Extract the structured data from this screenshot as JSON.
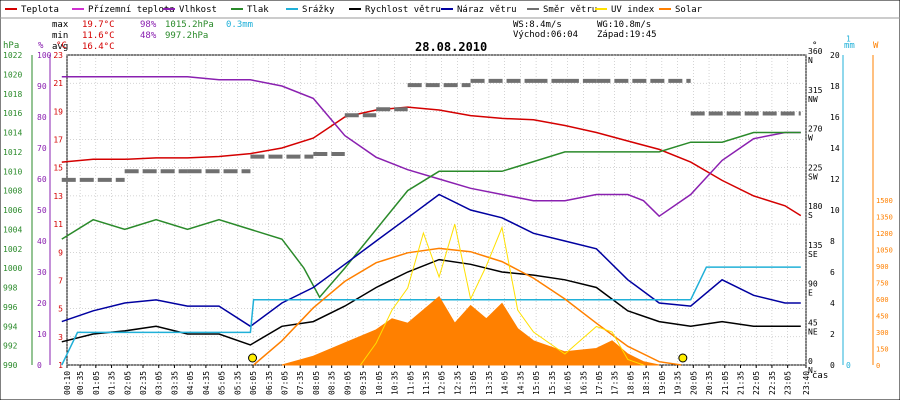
{
  "chart_data": {
    "type": "line",
    "title": "28.08.2010",
    "xlabel": "čas",
    "legend": [
      {
        "label": "Teplota",
        "color": "#d40000"
      },
      {
        "label": "Přízemní teplota",
        "color": "#d030d0"
      },
      {
        "label": "Vlhkost",
        "color": "#8a20b0"
      },
      {
        "label": "Tlak",
        "color": "#2a8a2a"
      },
      {
        "label": "Srážky",
        "color": "#20b0d8"
      },
      {
        "label": "Rychlost větru",
        "color": "#000000"
      },
      {
        "label": "Náraz větru",
        "color": "#0000a0"
      },
      {
        "label": "Směr větru",
        "color": "#707070"
      },
      {
        "label": "UV index",
        "color": "#ffe000"
      },
      {
        "label": "Solar",
        "color": "#ff8000"
      }
    ],
    "stats": {
      "max_label": "max",
      "max_temp": "19.7°C",
      "max_hum": "98%",
      "max_press": "1015.2hPa",
      "max_rain": "0.3mm",
      "min_label": "min",
      "min_temp": "11.6°C",
      "min_hum": "48%",
      "min_press": "997.2hPa",
      "avg_label": "avg",
      "avg_temp": "16.4°C"
    },
    "info": {
      "ws": "WS:8.4m/s",
      "wg": "WG:10.8m/s",
      "sunrise": "Východ:06:04",
      "sunset": "Západ:19:45"
    },
    "axis_units": {
      "press": "hPa",
      "hum": "%",
      "temp": "°C",
      "dir": "°",
      "wind": "m/s",
      "rain": "mm",
      "solar": "W"
    },
    "left_axes": {
      "press": {
        "min": 990,
        "max": 1022,
        "step": 2,
        "color": "#2a8a2a"
      },
      "hum": {
        "min": 0,
        "max": 100,
        "step": 10,
        "color": "#8a20b0"
      },
      "temp": {
        "min": 1,
        "max": 23,
        "step": 2,
        "color": "#d40000"
      }
    },
    "right_axes": {
      "dir": {
        "ticks": [
          "0 N",
          "45 NE",
          "90 E",
          "135 SE",
          "180 S",
          "225 SW",
          "270 W",
          "315 NW",
          "360 N"
        ]
      },
      "wind": {
        "min": 0,
        "max": 20,
        "step": 2
      },
      "rain": {
        "min": 0,
        "max": 1,
        "labels": [
          "0",
          "1"
        ]
      },
      "solar": {
        "min": 0,
        "max": 1500,
        "step": 150
      }
    },
    "time_range": [
      "00:10",
      "23:40"
    ],
    "x_ticks": [
      "00:10",
      "00:35",
      "01:05",
      "01:35",
      "02:05",
      "02:35",
      "03:05",
      "03:35",
      "04:05",
      "04:35",
      "05:05",
      "05:35",
      "06:05",
      "06:35",
      "07:05",
      "07:35",
      "08:05",
      "08:35",
      "09:05",
      "09:35",
      "10:05",
      "10:35",
      "11:05",
      "11:35",
      "12:05",
      "12:35",
      "13:05",
      "13:35",
      "14:05",
      "14:35",
      "15:05",
      "15:35",
      "16:05",
      "16:35",
      "17:05",
      "17:35",
      "18:05",
      "18:35",
      "19:05",
      "19:35",
      "20:05",
      "20:35",
      "21:05",
      "21:35",
      "22:05",
      "22:35",
      "23:05",
      "23:40"
    ],
    "series": [
      {
        "name": "Teplota",
        "axis": "temp",
        "color": "#d40000",
        "points": [
          [
            0,
            15.4
          ],
          [
            1,
            15.6
          ],
          [
            2,
            15.6
          ],
          [
            3,
            15.7
          ],
          [
            4,
            15.7
          ],
          [
            5,
            15.8
          ],
          [
            6,
            16.0
          ],
          [
            7,
            16.4
          ],
          [
            8,
            17.1
          ],
          [
            9,
            18.6
          ],
          [
            10,
            19.1
          ],
          [
            11,
            19.3
          ],
          [
            12,
            19.1
          ],
          [
            13,
            18.7
          ],
          [
            14,
            18.5
          ],
          [
            15,
            18.4
          ],
          [
            16,
            18.0
          ],
          [
            17,
            17.5
          ],
          [
            18,
            16.9
          ],
          [
            19,
            16.3
          ],
          [
            20,
            15.4
          ],
          [
            21,
            14.1
          ],
          [
            22,
            13.0
          ],
          [
            23,
            12.3
          ],
          [
            23.5,
            11.6
          ]
        ]
      },
      {
        "name": "Vlhkost",
        "axis": "hum",
        "color": "#8a20b0",
        "points": [
          [
            0,
            93
          ],
          [
            1,
            93
          ],
          [
            2,
            93
          ],
          [
            3,
            93
          ],
          [
            4,
            93
          ],
          [
            5,
            92
          ],
          [
            6,
            92
          ],
          [
            7,
            90
          ],
          [
            8,
            86
          ],
          [
            9,
            74
          ],
          [
            10,
            67
          ],
          [
            11,
            63
          ],
          [
            12,
            60
          ],
          [
            13,
            57
          ],
          [
            14,
            55
          ],
          [
            15,
            53
          ],
          [
            16,
            53
          ],
          [
            17,
            55
          ],
          [
            18,
            55
          ],
          [
            18.5,
            53
          ],
          [
            19,
            48
          ],
          [
            20,
            55
          ],
          [
            21,
            66
          ],
          [
            22,
            73
          ],
          [
            23,
            75
          ],
          [
            23.5,
            75
          ]
        ]
      },
      {
        "name": "Tlak",
        "axis": "press",
        "color": "#2a8a2a",
        "points": [
          [
            0,
            1003
          ],
          [
            1,
            1005
          ],
          [
            2,
            1004
          ],
          [
            3,
            1005
          ],
          [
            4,
            1004
          ],
          [
            5,
            1005
          ],
          [
            6,
            1004
          ],
          [
            7,
            1003
          ],
          [
            7.7,
            1000
          ],
          [
            8.2,
            997
          ],
          [
            9,
            1000
          ],
          [
            10,
            1004
          ],
          [
            11,
            1008
          ],
          [
            12,
            1010
          ],
          [
            13,
            1010
          ],
          [
            14,
            1010
          ],
          [
            15,
            1011
          ],
          [
            16,
            1012
          ],
          [
            17,
            1012
          ],
          [
            18,
            1012
          ],
          [
            19,
            1012
          ],
          [
            20,
            1013
          ],
          [
            21,
            1013
          ],
          [
            22,
            1014
          ],
          [
            23,
            1014
          ],
          [
            23.5,
            1014
          ]
        ]
      },
      {
        "name": "Rychlost větru",
        "axis": "wind",
        "color": "#000000",
        "points": [
          [
            0,
            1.5
          ],
          [
            1,
            2.0
          ],
          [
            2,
            2.2
          ],
          [
            3,
            2.5
          ],
          [
            4,
            2.0
          ],
          [
            5,
            2.0
          ],
          [
            6,
            1.3
          ],
          [
            7,
            2.5
          ],
          [
            8,
            2.8
          ],
          [
            9,
            3.8
          ],
          [
            10,
            5.0
          ],
          [
            11,
            6.0
          ],
          [
            12,
            6.8
          ],
          [
            13,
            6.5
          ],
          [
            14,
            6.0
          ],
          [
            15,
            5.8
          ],
          [
            16,
            5.5
          ],
          [
            17,
            5.0
          ],
          [
            18,
            3.5
          ],
          [
            19,
            2.8
          ],
          [
            20,
            2.5
          ],
          [
            21,
            2.8
          ],
          [
            22,
            2.5
          ],
          [
            23,
            2.5
          ],
          [
            23.5,
            2.5
          ]
        ]
      },
      {
        "name": "Náraz větru",
        "axis": "wind",
        "color": "#0000a0",
        "points": [
          [
            0,
            2.8
          ],
          [
            1,
            3.5
          ],
          [
            2,
            4.0
          ],
          [
            3,
            4.2
          ],
          [
            4,
            3.8
          ],
          [
            5,
            3.8
          ],
          [
            6,
            2.5
          ],
          [
            7,
            4.0
          ],
          [
            8,
            5.0
          ],
          [
            9,
            6.5
          ],
          [
            10,
            8.0
          ],
          [
            11,
            9.5
          ],
          [
            12,
            11.0
          ],
          [
            13,
            10.0
          ],
          [
            14,
            9.5
          ],
          [
            15,
            8.5
          ],
          [
            16,
            8.0
          ],
          [
            17,
            7.5
          ],
          [
            18,
            5.5
          ],
          [
            19,
            4.0
          ],
          [
            20,
            3.8
          ],
          [
            21,
            5.5
          ],
          [
            22,
            4.5
          ],
          [
            23,
            4.0
          ],
          [
            23.5,
            4.0
          ]
        ]
      },
      {
        "name": "Srážky",
        "axis": "rain",
        "color": "#20b0d8",
        "points": [
          [
            0,
            0
          ],
          [
            0.5,
            0.1
          ],
          [
            1,
            0.1
          ],
          [
            2,
            0.1
          ],
          [
            3,
            0.1
          ],
          [
            4,
            0.1
          ],
          [
            5,
            0.1
          ],
          [
            6,
            0.1
          ],
          [
            6.1,
            0.2
          ],
          [
            10,
            0.2
          ],
          [
            15,
            0.2
          ],
          [
            20,
            0.2
          ],
          [
            20.5,
            0.3
          ],
          [
            23.5,
            0.3
          ]
        ]
      },
      {
        "name": "Solar",
        "axis": "solar",
        "color": "#ff8000",
        "points": [
          [
            7,
            0
          ],
          [
            8,
            80
          ],
          [
            9,
            200
          ],
          [
            10,
            320
          ],
          [
            10.5,
            420
          ],
          [
            11,
            380
          ],
          [
            11.5,
            500
          ],
          [
            12,
            620
          ],
          [
            12.5,
            380
          ],
          [
            13,
            540
          ],
          [
            13.5,
            420
          ],
          [
            14,
            560
          ],
          [
            14.5,
            330
          ],
          [
            15,
            220
          ],
          [
            16,
            120
          ],
          [
            17,
            150
          ],
          [
            17.5,
            220
          ],
          [
            18,
            100
          ],
          [
            18.5,
            30
          ],
          [
            19,
            0
          ]
        ]
      },
      {
        "name": "Solar theoretical",
        "axis": "solar",
        "color": "#ff8000",
        "points": [
          [
            6.1,
            0
          ],
          [
            7,
            220
          ],
          [
            8,
            520
          ],
          [
            9,
            760
          ],
          [
            10,
            930
          ],
          [
            11,
            1020
          ],
          [
            12,
            1060
          ],
          [
            13,
            1030
          ],
          [
            14,
            940
          ],
          [
            15,
            790
          ],
          [
            16,
            600
          ],
          [
            17,
            380
          ],
          [
            18,
            170
          ],
          [
            19,
            30
          ],
          [
            19.7,
            0
          ]
        ]
      },
      {
        "name": "UV index",
        "axis": "solar",
        "color": "#ffe000",
        "points": [
          [
            9.5,
            0
          ],
          [
            10,
            200
          ],
          [
            10.5,
            500
          ],
          [
            11,
            700
          ],
          [
            11.5,
            1200
          ],
          [
            12,
            800
          ],
          [
            12.5,
            1280
          ],
          [
            13,
            600
          ],
          [
            13.5,
            900
          ],
          [
            14,
            1250
          ],
          [
            14.5,
            500
          ],
          [
            15,
            300
          ],
          [
            16,
            100
          ],
          [
            17,
            350
          ],
          [
            17.5,
            300
          ],
          [
            18,
            50
          ],
          [
            18.5,
            0
          ]
        ]
      },
      {
        "name": "Směr větru",
        "axis": "dir",
        "color": "#707070",
        "segments": [
          [
            0,
            2,
            215
          ],
          [
            2,
            4,
            225
          ],
          [
            4,
            6,
            225
          ],
          [
            6,
            8,
            242
          ],
          [
            8,
            9,
            245
          ],
          [
            9,
            10,
            290
          ],
          [
            10,
            11,
            297
          ],
          [
            11,
            13,
            325
          ],
          [
            13,
            15,
            330
          ],
          [
            15,
            16,
            330
          ],
          [
            16,
            17,
            330
          ],
          [
            17,
            20,
            330
          ],
          [
            20,
            23.5,
            292
          ]
        ]
      }
    ]
  }
}
